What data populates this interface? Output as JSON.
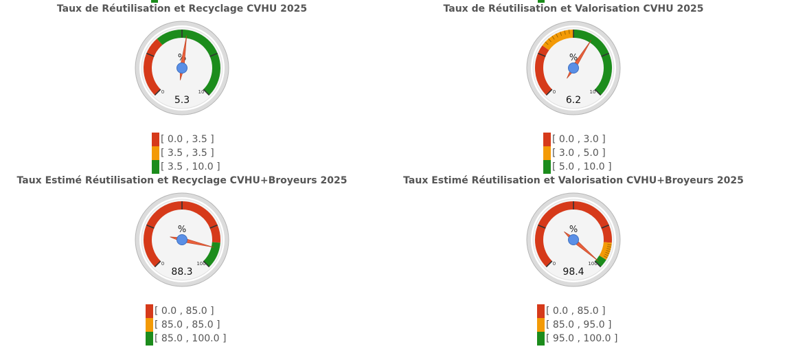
{
  "colors": {
    "red": "#d63a1a",
    "orange": "#f39a06",
    "green": "#1c8c1c",
    "needle": "#e8603c",
    "hub": "#5a8fe6"
  },
  "chart_data": [
    {
      "type": "gauge",
      "title": "Taux de Réutilisation et Recyclage CVHU 2025",
      "unit": "%",
      "value": 5.3,
      "min": 0,
      "max": 10,
      "min_label": "0",
      "max_label": "10",
      "value_label": "5.3",
      "ranges": [
        {
          "from": 0.0,
          "to": 3.5,
          "color": "red",
          "label": "[ 0.0 , 3.5 ]"
        },
        {
          "from": 3.5,
          "to": 3.5,
          "color": "orange",
          "label": "[ 3.5 , 3.5 ]"
        },
        {
          "from": 3.5,
          "to": 10.0,
          "color": "green",
          "label": "[ 3.5 , 10.0 ]"
        }
      ]
    },
    {
      "type": "gauge",
      "title": "Taux de Réutilisation et Valorisation CVHU 2025",
      "unit": "%",
      "value": 6.2,
      "min": 0,
      "max": 10,
      "min_label": "0",
      "max_label": "10",
      "value_label": "6.2",
      "ranges": [
        {
          "from": 0.0,
          "to": 3.0,
          "color": "red",
          "label": "[ 0.0 , 3.0 ]"
        },
        {
          "from": 3.0,
          "to": 5.0,
          "color": "orange",
          "label": "[ 3.0 , 5.0 ]"
        },
        {
          "from": 5.0,
          "to": 10.0,
          "color": "green",
          "label": "[ 5.0 , 10.0 ]"
        }
      ]
    },
    {
      "type": "gauge",
      "title": "Taux Estimé Réutilisation et Recyclage CVHU+Broyeurs 2025",
      "unit": "%",
      "value": 88.3,
      "min": 0,
      "max": 100,
      "min_label": "0",
      "max_label": "100",
      "value_label": "88.3",
      "ranges": [
        {
          "from": 0.0,
          "to": 85.0,
          "color": "red",
          "label": "[ 0.0 , 85.0 ]"
        },
        {
          "from": 85.0,
          "to": 85.0,
          "color": "orange",
          "label": "[ 85.0 , 85.0 ]"
        },
        {
          "from": 85.0,
          "to": 100.0,
          "color": "green",
          "label": "[ 85.0 , 100.0 ]"
        }
      ]
    },
    {
      "type": "gauge",
      "title": "Taux Estimé Réutilisation et Valorisation CVHU+Broyeurs 2025",
      "unit": "%",
      "value": 98.4,
      "min": 0,
      "max": 100,
      "min_label": "0",
      "max_label": "100",
      "value_label": "98.4",
      "ranges": [
        {
          "from": 0.0,
          "to": 85.0,
          "color": "red",
          "label": "[ 0.0 , 85.0 ]"
        },
        {
          "from": 85.0,
          "to": 95.0,
          "color": "orange",
          "label": "[ 85.0 , 95.0 ]"
        },
        {
          "from": 95.0,
          "to": 100.0,
          "color": "green",
          "label": "[ 95.0 , 100.0 ]"
        }
      ]
    }
  ]
}
